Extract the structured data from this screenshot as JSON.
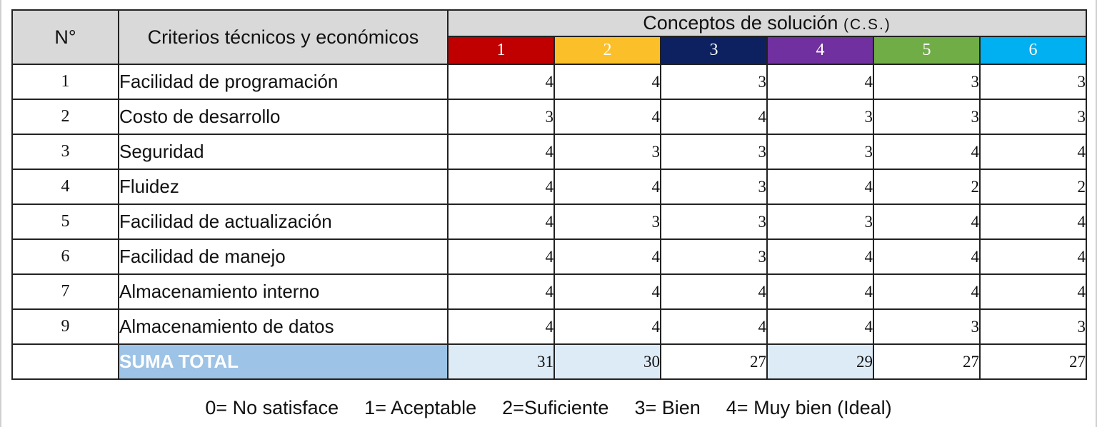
{
  "header": {
    "num_label": "N°",
    "criteria_label": "Criterios técnicos y económicos",
    "cs_title": "Conceptos de solución",
    "cs_abbrev": "(C.S.)"
  },
  "concepts": [
    {
      "label": "1",
      "color": "#c00000"
    },
    {
      "label": "2",
      "color": "#fbbf2a"
    },
    {
      "label": "3",
      "color": "#0d2160"
    },
    {
      "label": "4",
      "color": "#7030a0"
    },
    {
      "label": "5",
      "color": "#70ad47"
    },
    {
      "label": "6",
      "color": "#00b0f0"
    }
  ],
  "rows": [
    {
      "num": "1",
      "criterion": "Facilidad de programación",
      "scores": [
        "4",
        "4",
        "3",
        "4",
        "3",
        "3"
      ]
    },
    {
      "num": "2",
      "criterion": "Costo de desarrollo",
      "scores": [
        "3",
        "4",
        "4",
        "3",
        "3",
        "3"
      ]
    },
    {
      "num": "3",
      "criterion": "Seguridad",
      "scores": [
        "4",
        "3",
        "3",
        "3",
        "4",
        "4"
      ]
    },
    {
      "num": "4",
      "criterion": "Fluidez",
      "scores": [
        "4",
        "4",
        "3",
        "4",
        "2",
        "2"
      ]
    },
    {
      "num": "5",
      "criterion": "Facilidad de actualización",
      "scores": [
        "4",
        "3",
        "3",
        "3",
        "4",
        "4"
      ]
    },
    {
      "num": "6",
      "criterion": "Facilidad de manejo",
      "scores": [
        "4",
        "4",
        "3",
        "4",
        "4",
        "4"
      ]
    },
    {
      "num": "7",
      "criterion": "Almacenamiento interno",
      "scores": [
        "4",
        "4",
        "4",
        "4",
        "4",
        "4"
      ]
    },
    {
      "num": "9",
      "criterion": "Almacenamiento de datos",
      "scores": [
        "4",
        "4",
        "4",
        "4",
        "3",
        "3"
      ]
    }
  ],
  "totals": {
    "label": "SUMA TOTAL",
    "values": [
      "31",
      "30",
      "27",
      "29",
      "27",
      "27"
    ]
  },
  "legend": [
    "0= No satisface",
    "1= Aceptable",
    "2=Suficiente",
    "3= Bien",
    "4= Muy bien (Ideal)"
  ]
}
